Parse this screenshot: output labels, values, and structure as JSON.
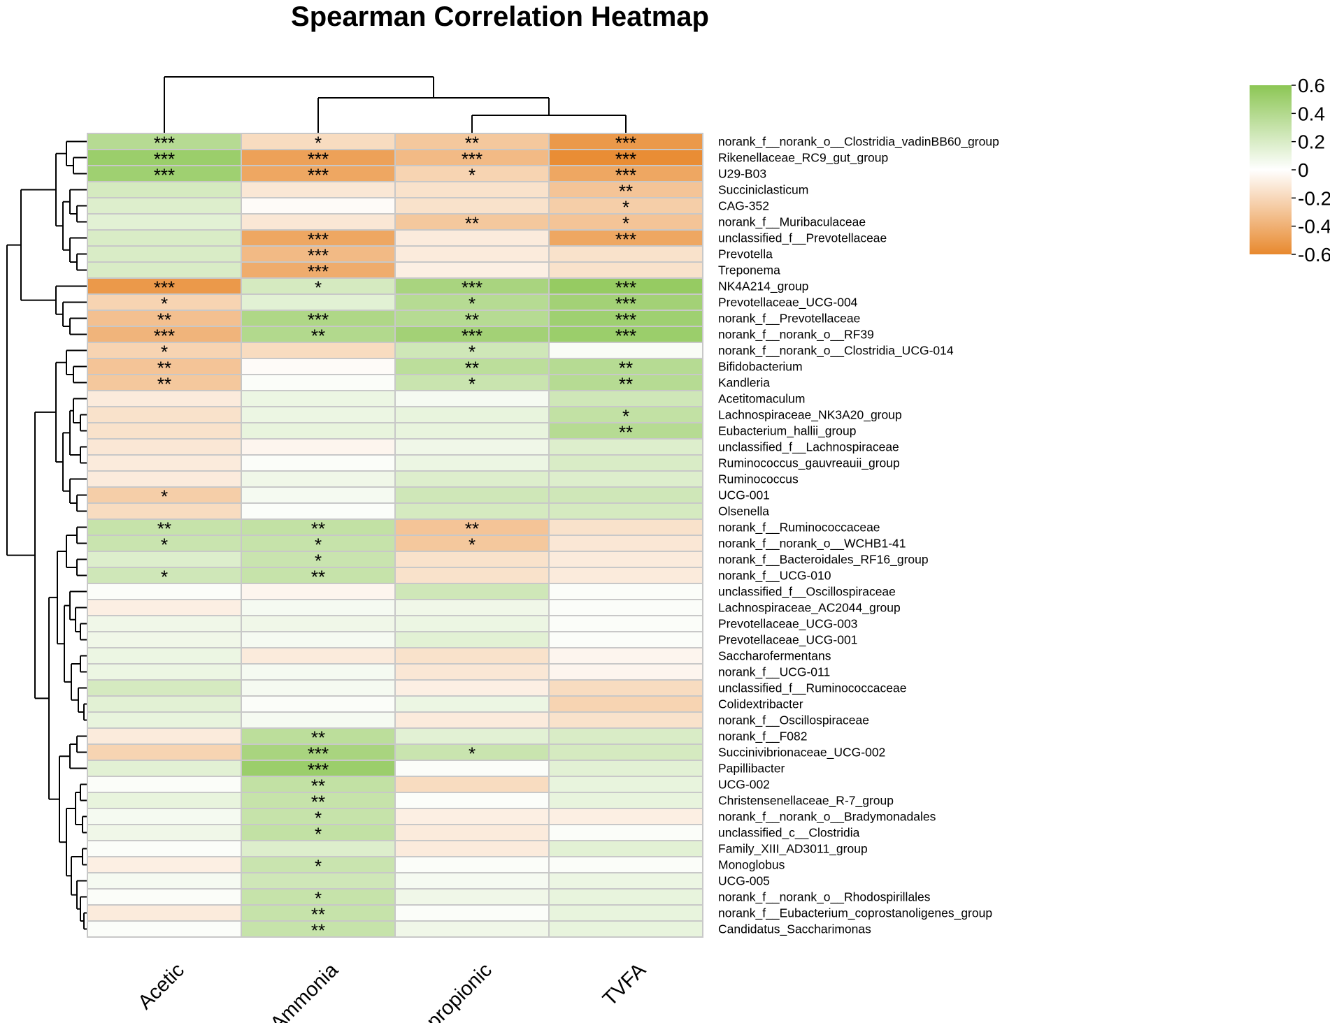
{
  "chart_data": {
    "type": "heatmap",
    "title": "Spearman Correlation Heatmap",
    "columns": [
      "Acetic",
      "Ammonia",
      "propionic",
      "TVFA"
    ],
    "rows": [
      "norank_f__norank_o__Clostridia_vadinBB60_group",
      "Rikenellaceae_RC9_gut_group",
      "U29-B03",
      "Succiniclasticum",
      "CAG-352",
      "norank_f__Muribaculaceae",
      "unclassified_f__Prevotellaceae",
      "Prevotella",
      "Treponema",
      "NK4A214_group",
      "Prevotellaceae_UCG-004",
      "norank_f__Prevotellaceae",
      "norank_f__norank_o__RF39",
      "norank_f__norank_o__Clostridia_UCG-014",
      "Bifidobacterium",
      "Kandleria",
      "Acetitomaculum",
      "Lachnospiraceae_NK3A20_group",
      "Eubacterium_hallii_group",
      "unclassified_f__Lachnospiraceae",
      "Ruminococcus_gauvreauii_group",
      "Ruminococcus",
      "UCG-001",
      "Olsenella",
      "norank_f__Ruminococcaceae",
      "norank_f__norank_o__WCHB1-41",
      "norank_f__Bacteroidales_RF16_group",
      "norank_f__UCG-010",
      "unclassified_f__Oscillospiraceae",
      "Lachnospiraceae_AC2044_group",
      "Prevotellaceae_UCG-003",
      "Prevotellaceae_UCG-001",
      "Saccharofermentans",
      "norank_f__UCG-011",
      "unclassified_f__Ruminococcaceae",
      "Colidextribacter",
      "norank_f__Oscillospiraceae",
      "norank_f__F082",
      "Succinivibrionaceae_UCG-002",
      "Papillibacter",
      "UCG-002",
      "Christensenellaceae_R-7_group",
      "norank_f__norank_o__Bradymonadales",
      "unclassified_c__Clostridia",
      "Family_XIII_AD3011_group",
      "Monoglobus",
      "UCG-005",
      "norank_f__norank_o__Rhodospirillales",
      "norank_f__Eubacterium_coprostanoligenes_group",
      "Candidatus_Saccharimonas"
    ],
    "values": [
      [
        0.38,
        -0.18,
        -0.28,
        -0.52
      ],
      [
        0.52,
        -0.48,
        -0.35,
        -0.58
      ],
      [
        0.5,
        -0.45,
        -0.22,
        -0.45
      ],
      [
        0.22,
        -0.12,
        -0.15,
        -0.3
      ],
      [
        0.18,
        -0.02,
        -0.15,
        -0.25
      ],
      [
        0.15,
        -0.12,
        -0.28,
        -0.3
      ],
      [
        0.2,
        -0.45,
        -0.1,
        -0.45
      ],
      [
        0.2,
        -0.35,
        -0.1,
        -0.15
      ],
      [
        0.2,
        -0.42,
        -0.08,
        -0.15
      ],
      [
        -0.52,
        0.22,
        0.45,
        0.55
      ],
      [
        -0.22,
        0.15,
        0.38,
        0.48
      ],
      [
        -0.32,
        0.42,
        0.38,
        0.5
      ],
      [
        -0.38,
        0.4,
        0.48,
        0.52
      ],
      [
        -0.22,
        -0.18,
        0.25,
        0.03
      ],
      [
        -0.3,
        -0.02,
        0.35,
        0.38
      ],
      [
        -0.28,
        0.02,
        0.28,
        0.38
      ],
      [
        -0.1,
        0.1,
        0.05,
        0.25
      ],
      [
        -0.15,
        0.1,
        0.12,
        0.32
      ],
      [
        -0.15,
        0.12,
        0.12,
        0.38
      ],
      [
        -0.12,
        -0.05,
        0.08,
        0.18
      ],
      [
        -0.1,
        0.02,
        0.1,
        0.2
      ],
      [
        -0.1,
        0.08,
        0.18,
        0.18
      ],
      [
        -0.25,
        0.05,
        0.25,
        0.25
      ],
      [
        -0.18,
        0.02,
        0.22,
        0.22
      ],
      [
        0.3,
        0.32,
        -0.3,
        -0.15
      ],
      [
        0.28,
        0.3,
        -0.28,
        -0.12
      ],
      [
        0.18,
        0.28,
        -0.15,
        -0.1
      ],
      [
        0.25,
        0.3,
        -0.15,
        -0.1
      ],
      [
        0.02,
        -0.05,
        0.25,
        0.02
      ],
      [
        -0.08,
        0.05,
        0.08,
        0.02
      ],
      [
        0.08,
        0.08,
        0.1,
        0.02
      ],
      [
        0.08,
        0.05,
        0.15,
        0.02
      ],
      [
        0.1,
        -0.1,
        -0.15,
        -0.05
      ],
      [
        0.1,
        0.05,
        -0.12,
        -0.05
      ],
      [
        0.22,
        0.05,
        -0.08,
        -0.18
      ],
      [
        0.15,
        0.02,
        0.1,
        -0.22
      ],
      [
        0.12,
        0.05,
        -0.1,
        -0.15
      ],
      [
        -0.1,
        0.35,
        0.15,
        0.2
      ],
      [
        -0.22,
        0.45,
        0.28,
        0.22
      ],
      [
        0.15,
        0.52,
        0.02,
        0.15
      ],
      [
        0.02,
        0.32,
        -0.18,
        0.12
      ],
      [
        0.12,
        0.3,
        0.02,
        0.12
      ],
      [
        0.05,
        0.3,
        -0.08,
        -0.08
      ],
      [
        0.08,
        0.32,
        -0.1,
        0.02
      ],
      [
        0.02,
        0.18,
        -0.1,
        0.15
      ],
      [
        -0.08,
        0.28,
        0.02,
        0.02
      ],
      [
        0.05,
        0.25,
        0.05,
        0.1
      ],
      [
        0.02,
        0.3,
        0.08,
        0.12
      ],
      [
        -0.1,
        0.3,
        0.02,
        0.12
      ],
      [
        0.02,
        0.3,
        0.08,
        0.12
      ]
    ],
    "significance": [
      [
        "***",
        "*",
        "**",
        "***"
      ],
      [
        "***",
        "***",
        "***",
        "***"
      ],
      [
        "***",
        "***",
        "*",
        "***"
      ],
      [
        "",
        "",
        "",
        "**"
      ],
      [
        "",
        "",
        "",
        "*"
      ],
      [
        "",
        "",
        "**",
        "*"
      ],
      [
        "",
        "***",
        "",
        "***"
      ],
      [
        "",
        "***",
        "",
        ""
      ],
      [
        "",
        "***",
        "",
        ""
      ],
      [
        "***",
        "*",
        "***",
        "***"
      ],
      [
        "*",
        "",
        "*",
        "***"
      ],
      [
        "**",
        "***",
        "**",
        "***"
      ],
      [
        "***",
        "**",
        "***",
        "***"
      ],
      [
        "*",
        "",
        "*",
        ""
      ],
      [
        "**",
        "",
        "**",
        "**"
      ],
      [
        "**",
        "",
        "*",
        "**"
      ],
      [
        "",
        "",
        "",
        ""
      ],
      [
        "",
        "",
        "",
        "*"
      ],
      [
        "",
        "",
        "",
        "**"
      ],
      [
        "",
        "",
        "",
        ""
      ],
      [
        "",
        "",
        "",
        ""
      ],
      [
        "",
        "",
        "",
        ""
      ],
      [
        "*",
        "",
        "",
        ""
      ],
      [
        "",
        "",
        "",
        ""
      ],
      [
        "**",
        "**",
        "**",
        ""
      ],
      [
        "*",
        "*",
        "*",
        ""
      ],
      [
        "",
        "*",
        "",
        ""
      ],
      [
        "*",
        "**",
        "",
        ""
      ],
      [
        "",
        "",
        "",
        ""
      ],
      [
        "",
        "",
        "",
        ""
      ],
      [
        "",
        "",
        "",
        ""
      ],
      [
        "",
        "",
        "",
        ""
      ],
      [
        "",
        "",
        "",
        ""
      ],
      [
        "",
        "",
        "",
        ""
      ],
      [
        "",
        "",
        "",
        ""
      ],
      [
        "",
        "",
        "",
        ""
      ],
      [
        "",
        "",
        "",
        ""
      ],
      [
        "",
        "**",
        "",
        ""
      ],
      [
        "",
        "***",
        "*",
        ""
      ],
      [
        "",
        "***",
        "",
        ""
      ],
      [
        "",
        "**",
        "",
        ""
      ],
      [
        "",
        "**",
        "",
        ""
      ],
      [
        "",
        "*",
        "",
        ""
      ],
      [
        "",
        "*",
        "",
        ""
      ],
      [
        "",
        "",
        "",
        ""
      ],
      [
        "",
        "*",
        "",
        ""
      ],
      [
        "",
        "",
        "",
        ""
      ],
      [
        "",
        "*",
        "",
        ""
      ],
      [
        "",
        "**",
        "",
        ""
      ],
      [
        "",
        "**",
        "",
        ""
      ]
    ],
    "colorbar": {
      "range": [
        -0.6,
        0.6
      ],
      "ticks": [
        "0.6",
        "0.4",
        "0.2",
        "0",
        "-0.2",
        "-0.4",
        "-0.6"
      ],
      "colors": {
        "high": "#8cc654",
        "mid": "#ffffff",
        "low": "#e8892e"
      }
    },
    "dendrograms": {
      "column": true,
      "row": true
    }
  }
}
